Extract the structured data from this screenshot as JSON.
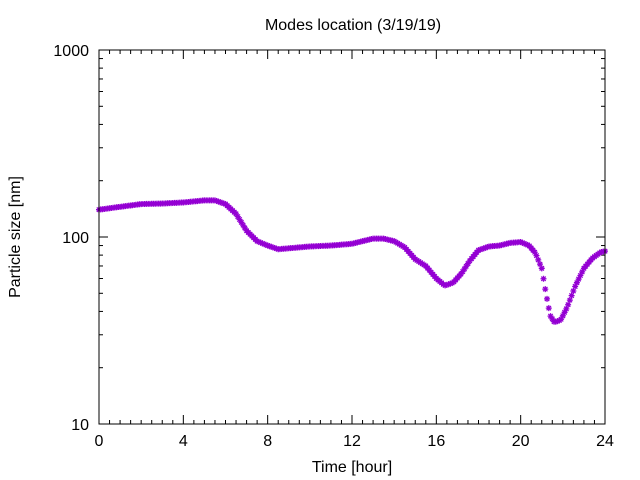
{
  "chart_data": {
    "type": "scatter",
    "title": "Modes location (3/19/19)",
    "xlabel": "Time [hour]",
    "ylabel": "Particle size [nm]",
    "xlim": [
      0,
      24
    ],
    "ylim": [
      10,
      1000
    ],
    "yscale": "log",
    "grid": false,
    "xticks": [
      "0",
      "4",
      "8",
      "12",
      "16",
      "20",
      "24"
    ],
    "yticks": [
      "10",
      "100",
      "1000"
    ],
    "color": "#9400d3",
    "marker": "star",
    "anchors": [
      [
        0,
        140
      ],
      [
        1,
        145
      ],
      [
        2,
        150
      ],
      [
        3,
        151
      ],
      [
        4,
        153
      ],
      [
        5,
        157
      ],
      [
        5.5,
        157
      ],
      [
        6,
        150
      ],
      [
        6.5,
        133
      ],
      [
        7,
        108
      ],
      [
        7.5,
        95
      ],
      [
        8,
        90
      ],
      [
        8.5,
        86
      ],
      [
        9,
        87
      ],
      [
        10,
        89
      ],
      [
        11,
        90
      ],
      [
        12,
        92
      ],
      [
        12.5,
        95
      ],
      [
        13,
        98
      ],
      [
        13.5,
        98
      ],
      [
        14,
        95
      ],
      [
        14.5,
        88
      ],
      [
        15,
        76
      ],
      [
        15.5,
        70
      ],
      [
        16,
        60
      ],
      [
        16.4,
        55
      ],
      [
        16.8,
        57
      ],
      [
        17.2,
        64
      ],
      [
        17.6,
        75
      ],
      [
        18,
        85
      ],
      [
        18.5,
        89
      ],
      [
        19,
        90
      ],
      [
        19.5,
        93
      ],
      [
        20,
        94
      ],
      [
        20.4,
        90
      ],
      [
        20.7,
        82
      ],
      [
        21,
        68
      ],
      [
        21.2,
        50
      ],
      [
        21.4,
        38
      ],
      [
        21.6,
        35
      ],
      [
        21.9,
        36
      ],
      [
        22.2,
        42
      ],
      [
        22.6,
        55
      ],
      [
        23,
        68
      ],
      [
        23.4,
        77
      ],
      [
        23.8,
        83
      ],
      [
        24,
        84
      ]
    ]
  }
}
